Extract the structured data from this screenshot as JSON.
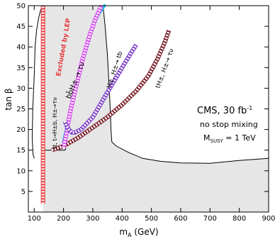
{
  "chart_data": {
    "type": "line",
    "xlabel": "m",
    "xlabel_sub": "A",
    "xlabel_unit": " (GeV)",
    "ylabel": "tan β",
    "xlim": [
      80,
      900
    ],
    "ylim": [
      0,
      50
    ],
    "x_ticks": [
      100,
      200,
      300,
      400,
      500,
      600,
      700,
      800,
      900
    ],
    "y_ticks": [
      5,
      10,
      15,
      20,
      25,
      30,
      35,
      40,
      45,
      50
    ],
    "grid": false,
    "legend": "none",
    "annotations": {
      "experiment": "CMS, 30 fb",
      "experiment_sup": "-1",
      "mixing": "no stop mixing",
      "msusy_prefix": "M",
      "msusy_sub": "SUSY",
      "msusy_value": " = 1 TeV",
      "lep": "Excluded by LEP",
      "ttbar": "tt, t→H±b, H±→τν",
      "htaunu": "bb̄H± → τν",
      "hpm_tb": "H±, H±→ tb",
      "hpm_taunu": "tH±, H±→ τν"
    },
    "series": [
      {
        "role": "LEP excluded edge",
        "color": "#e8383a",
        "style": "hatched",
        "x": [
          130,
          130
        ],
        "y": [
          2,
          50
        ]
      },
      {
        "role": "gray region boundary left",
        "color": "#000000",
        "style": "thin",
        "x": [
          100,
          96,
          93,
          95,
          100,
          103,
          108,
          115,
          122,
          130
        ],
        "y": [
          13,
          14,
          18,
          25,
          33,
          40,
          44,
          47,
          49,
          50
        ]
      },
      {
        "role": "gray region boundary right",
        "color": "#000000",
        "style": "thin",
        "x": [
          335,
          342,
          350,
          356,
          360,
          362,
          365,
          380,
          420,
          470,
          530,
          600,
          700,
          800,
          900
        ],
        "y": [
          50,
          45,
          38,
          30,
          24,
          20,
          17,
          16,
          14.5,
          13,
          12.3,
          11.9,
          11.8,
          12.5,
          13
        ]
      },
      {
        "role": "gray region bottom edge",
        "color": "#000000",
        "style": "thin",
        "x": [
          130,
          152,
          205,
          208
        ],
        "y": [
          15,
          15,
          15,
          15.5
        ]
      },
      {
        "role": "H±→τν contour (cyan)",
        "color": "#00c8e0",
        "style": "band",
        "x": [
          200,
          212,
          230,
          255,
          280,
          300,
          320,
          340
        ],
        "y": [
          17,
          21,
          27,
          34,
          40,
          45,
          48,
          50
        ]
      },
      {
        "role": "H±→τν contour (magenta)",
        "color": "#d84cf0",
        "style": "hatched",
        "x": [
          200,
          210,
          225,
          245,
          265,
          290,
          310,
          330
        ],
        "y": [
          15.5,
          19,
          25,
          31,
          37,
          43,
          47,
          50
        ]
      },
      {
        "role": "H±→tb contour",
        "color": "#7b3ec8",
        "style": "hatched",
        "x": [
          205,
          210,
          218,
          228,
          240,
          260,
          300,
          350,
          400,
          430,
          448
        ],
        "y": [
          22,
          21,
          20,
          19.3,
          19.3,
          20,
          23,
          29,
          35,
          38.5,
          40.5
        ]
      },
      {
        "role": "tH±, H±→τν contour",
        "color": "#7a1f2a",
        "style": "hatched",
        "x": [
          160,
          200,
          250,
          300,
          350,
          400,
          450,
          490,
          520,
          545,
          560
        ],
        "y": [
          15,
          16,
          18,
          20.5,
          23,
          26,
          29.5,
          33,
          37,
          41,
          44
        ]
      }
    ]
  }
}
